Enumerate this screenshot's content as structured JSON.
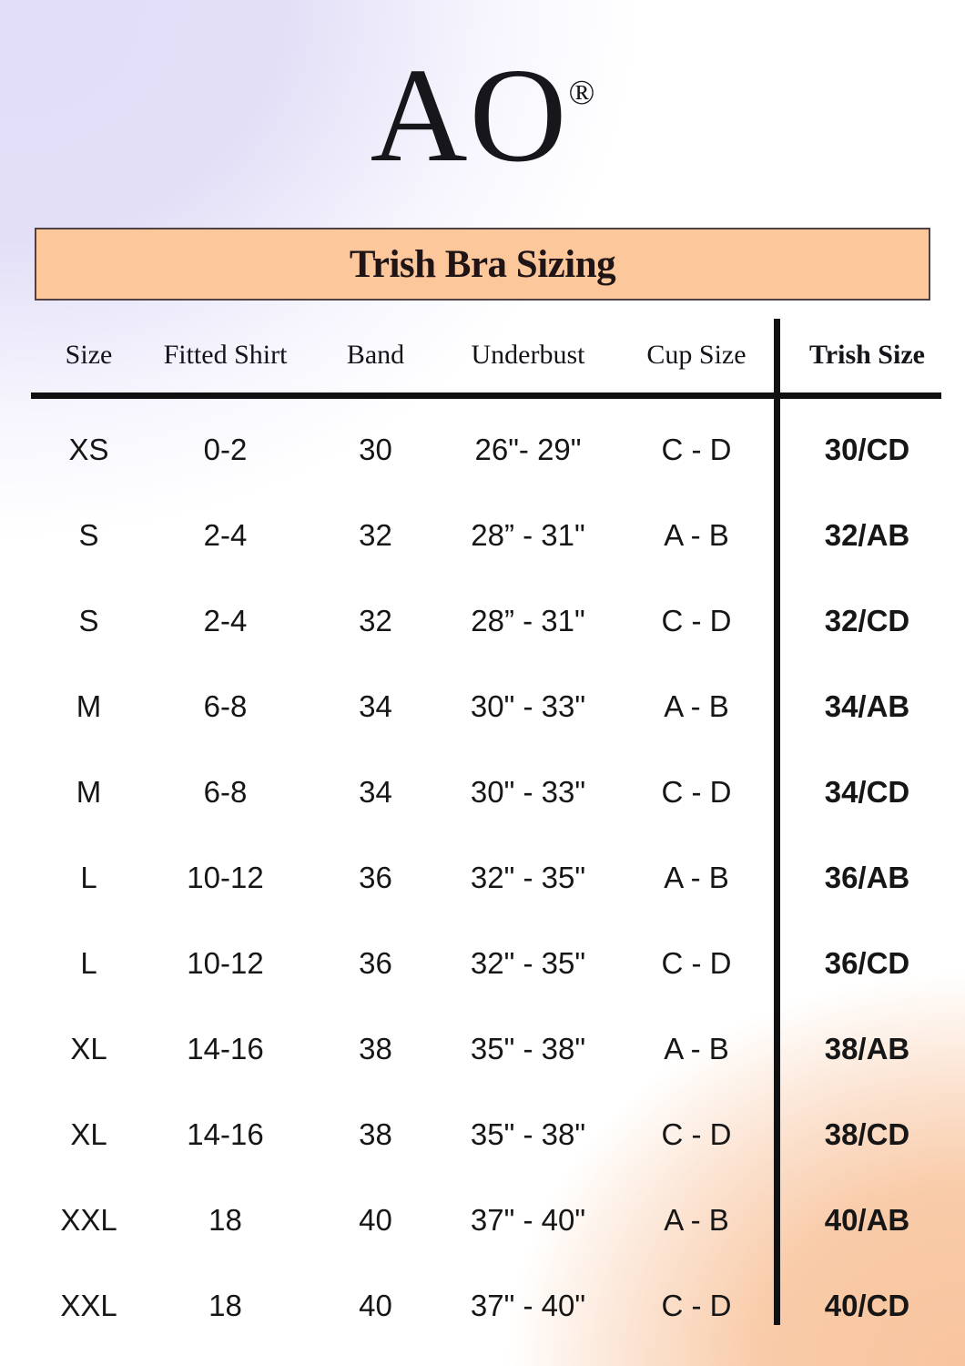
{
  "brand": {
    "name": "AO",
    "registered_mark": "®"
  },
  "banner": {
    "title": "Trish Bra Sizing"
  },
  "table": {
    "headers": [
      "Size",
      "Fitted Shirt",
      "Band",
      "Underbust",
      "Cup Size",
      "Trish Size"
    ],
    "rows": [
      [
        "XS",
        "0-2",
        "30",
        "26\"- 29\"",
        "C - D",
        "30/CD"
      ],
      [
        "S",
        "2-4",
        "32",
        "28” - 31\"",
        "A - B",
        "32/AB"
      ],
      [
        "S",
        "2-4",
        "32",
        "28” - 31\"",
        "C - D",
        "32/CD"
      ],
      [
        "M",
        "6-8",
        "34",
        "30\" - 33\"",
        "A - B",
        "34/AB"
      ],
      [
        "M",
        "6-8",
        "34",
        "30\" - 33\"",
        "C - D",
        "34/CD"
      ],
      [
        "L",
        "10-12",
        "36",
        "32\" - 35\"",
        "A - B",
        "36/AB"
      ],
      [
        "L",
        "10-12",
        "36",
        "32\" - 35\"",
        "C - D",
        "36/CD"
      ],
      [
        "XL",
        "14-16",
        "38",
        "35\" - 38\"",
        "A - B",
        "38/AB"
      ],
      [
        "XL",
        "14-16",
        "38",
        "35\" - 38\"",
        "C - D",
        "38/CD"
      ],
      [
        "XXL",
        "18",
        "40",
        "37\" - 40\"",
        "A - B",
        "40/AB"
      ],
      [
        "XXL",
        "18",
        "40",
        "37\" - 40\"",
        "C - D",
        "40/CD"
      ]
    ]
  },
  "colors": {
    "banner_fill": "#FDC79C",
    "banner_border": "#4F4144",
    "rule_black": "#111111",
    "background_lavender": "#E2DEF8",
    "background_peach_glow": "#F8C49E",
    "text_dark": "#161616"
  }
}
